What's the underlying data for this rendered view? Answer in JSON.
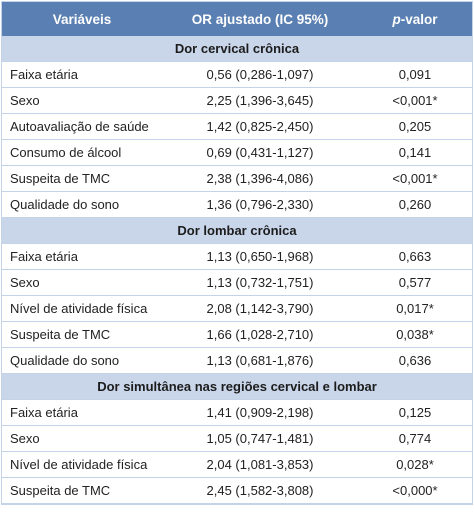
{
  "header": {
    "variable": "Variáveis",
    "or": "OR ajustado (IC 95%)",
    "p_italic": "p",
    "p_rest": "-valor"
  },
  "sections": [
    {
      "title": "Dor cervical crônica",
      "rows": [
        [
          "Faixa etária",
          "0,56 (0,286-1,097)",
          "0,091"
        ],
        [
          "Sexo",
          "2,25 (1,396-3,645)",
          "<0,001*"
        ],
        [
          "Autoavaliação de saúde",
          "1,42 (0,825-2,450)",
          "0,205"
        ],
        [
          "Consumo de álcool",
          "0,69 (0,431-1,127)",
          "0,141"
        ],
        [
          "Suspeita de TMC",
          "2,38 (1,396-4,086)",
          "<0,001*"
        ],
        [
          "Qualidade do sono",
          "1,36 (0,796-2,330)",
          "0,260"
        ]
      ]
    },
    {
      "title": "Dor lombar crônica",
      "rows": [
        [
          "Faixa etária",
          "1,13 (0,650-1,968)",
          "0,663"
        ],
        [
          "Sexo",
          "1,13 (0,732-1,751)",
          "0,577"
        ],
        [
          "Nível de atividade física",
          "2,08 (1,142-3,790)",
          "0,017*"
        ],
        [
          "Suspeita de TMC",
          "1,66 (1,028-2,710)",
          "0,038*"
        ],
        [
          "Qualidade do sono",
          "1,13 (0,681-1,876)",
          "0,636"
        ]
      ]
    },
    {
      "title": "Dor simultânea nas regiões cervical e lombar",
      "rows": [
        [
          "Faixa etária",
          "1,41 (0,909-2,198)",
          "0,125"
        ],
        [
          "Sexo",
          "1,05 (0,747-1,481)",
          "0,774"
        ],
        [
          "Nível de atividade física",
          "2,04 (1,081-3,853)",
          "0,028*"
        ],
        [
          "Suspeita de TMC",
          "2,45 (1,582-3,808)",
          "<0,000*"
        ]
      ]
    }
  ]
}
